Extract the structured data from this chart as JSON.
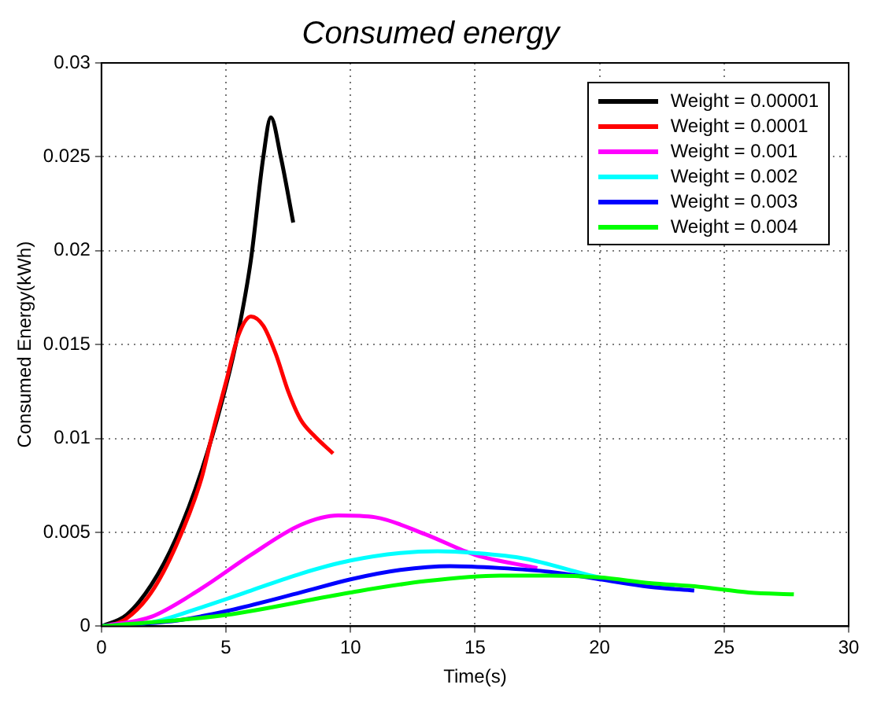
{
  "chart_data": {
    "type": "line",
    "title": "Consumed energy",
    "xlabel": "Time(s)",
    "ylabel": "Consumed Energy(kWh)",
    "xlim": [
      0,
      30
    ],
    "xticks": [
      0,
      5,
      10,
      15,
      20,
      25,
      30
    ],
    "ylim": [
      0,
      0.03
    ],
    "yticks": [
      0,
      0.005,
      0.01,
      0.015,
      0.02,
      0.025,
      0.03
    ],
    "grid": true,
    "legend": "top right",
    "marker": "none",
    "line_style": "solid",
    "series": [
      {
        "name": "Weight = 0.00001",
        "color": "#000000",
        "x": [
          0,
          1,
          2,
          3,
          4,
          5,
          5.5,
          6,
          6.5,
          6.8,
          7.2,
          7.7
        ],
        "values": [
          0,
          0.0006,
          0.0022,
          0.0047,
          0.0082,
          0.0128,
          0.0157,
          0.0195,
          0.025,
          0.0271,
          0.025,
          0.0215
        ]
      },
      {
        "name": "Weight = 0.0001",
        "color": "#ff0000",
        "x": [
          0.3,
          1,
          2,
          3,
          4,
          4.5,
          5,
          5.5,
          6,
          6.5,
          7,
          7.5,
          8,
          8.5,
          9.3
        ],
        "values": [
          0,
          0.0004,
          0.0018,
          0.0043,
          0.0078,
          0.0105,
          0.013,
          0.0155,
          0.0165,
          0.016,
          0.0145,
          0.0125,
          0.011,
          0.0102,
          0.0092
        ]
      },
      {
        "name": "Weight = 0.001",
        "color": "#ff00ff",
        "x": [
          0,
          2,
          4,
          6,
          8,
          9.5,
          11,
          13,
          15,
          17.5
        ],
        "values": [
          0,
          0.0005,
          0.002,
          0.0038,
          0.0054,
          0.0059,
          0.0058,
          0.0049,
          0.0038,
          0.0031
        ]
      },
      {
        "name": "Weight = 0.002",
        "color": "#00ffff",
        "x": [
          0,
          2,
          4,
          6,
          8,
          10,
          12,
          13.5,
          15,
          17,
          20,
          23
        ],
        "values": [
          0,
          0.0002,
          0.001,
          0.0019,
          0.0028,
          0.0035,
          0.0039,
          0.004,
          0.0039,
          0.0036,
          0.0026,
          0.002
        ]
      },
      {
        "name": "Weight = 0.003",
        "color": "#0000ff",
        "x": [
          0,
          3,
          5,
          8,
          10,
          12,
          14,
          16,
          18,
          20,
          22,
          23.8
        ],
        "values": [
          0,
          0.0003,
          0.0008,
          0.0018,
          0.0025,
          0.003,
          0.0032,
          0.0031,
          0.0029,
          0.0025,
          0.0021,
          0.0019
        ]
      },
      {
        "name": "Weight = 0.004",
        "color": "#00ff00",
        "x": [
          0,
          5,
          10,
          13,
          16,
          18,
          20,
          22,
          24,
          26,
          27.8
        ],
        "values": [
          0,
          0.0006,
          0.0018,
          0.0024,
          0.0027,
          0.0027,
          0.0026,
          0.0023,
          0.0021,
          0.0018,
          0.0017
        ]
      }
    ]
  }
}
